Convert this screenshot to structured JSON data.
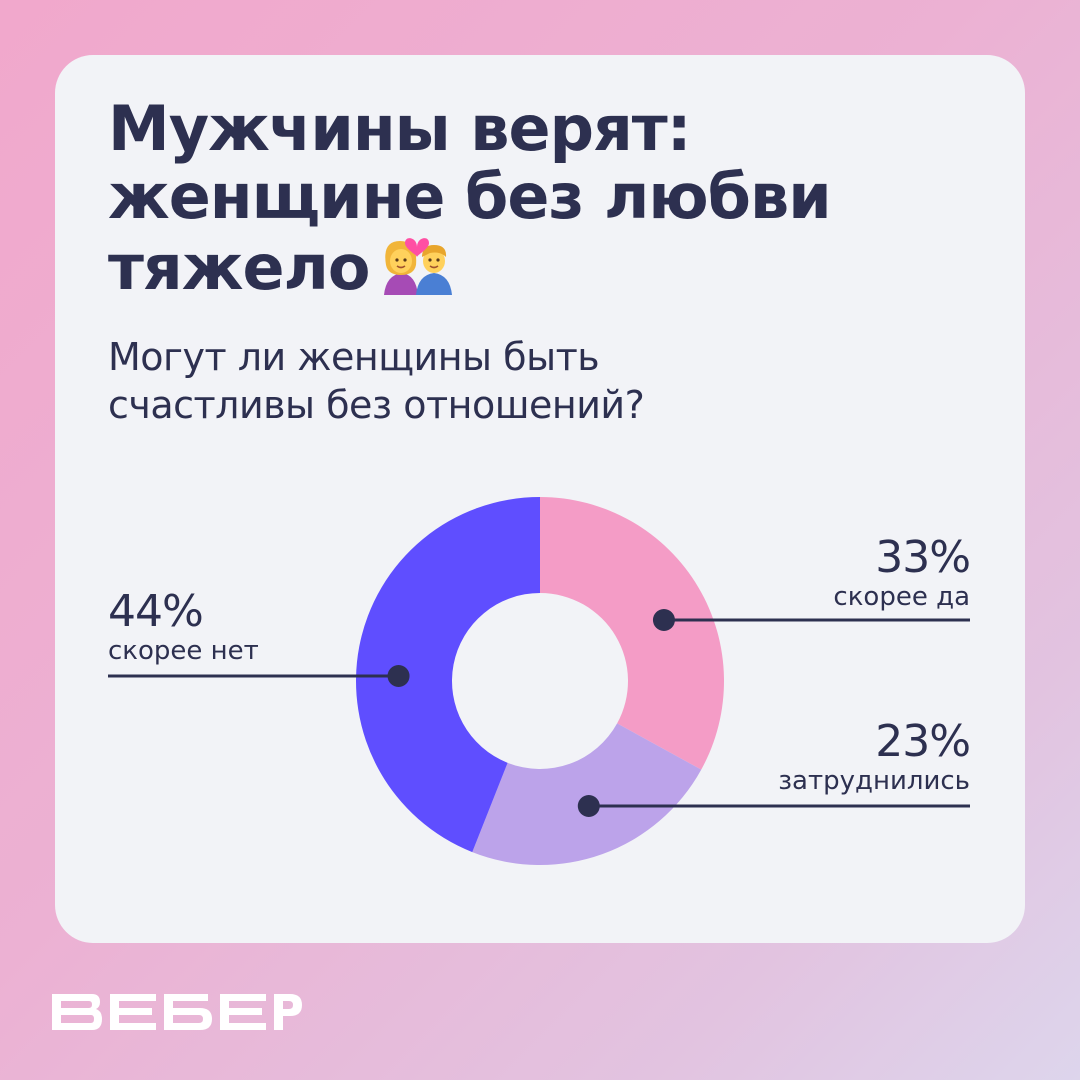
{
  "title_lines": [
    "Мужчины верят:",
    "женщине без любви",
    "тяжело"
  ],
  "subtitle_lines": [
    "Могут ли женщины быть",
    "счастливы без отношений?"
  ],
  "brand": "ВЕБЕР",
  "colors": {
    "text": "#2d3050",
    "card": "#f2f3f7",
    "yes": "#f49cc6",
    "unsure": "#bca3ea",
    "no": "#5f4eff",
    "logo": "#ffffff"
  },
  "icons": [
    "couple-with-heart-icon"
  ],
  "chart_data": {
    "type": "pie",
    "variant": "donut",
    "title": "Могут ли женщины быть счастливы без отношений?",
    "slices": [
      {
        "label": "скорее да",
        "value": 33,
        "value_label": "33%",
        "color": "#f49cc6"
      },
      {
        "label": "затруднились",
        "value": 23,
        "value_label": "23%",
        "color": "#bca3ea"
      },
      {
        "label": "скорее нет",
        "value": 44,
        "value_label": "44%",
        "color": "#5f4eff"
      }
    ]
  }
}
